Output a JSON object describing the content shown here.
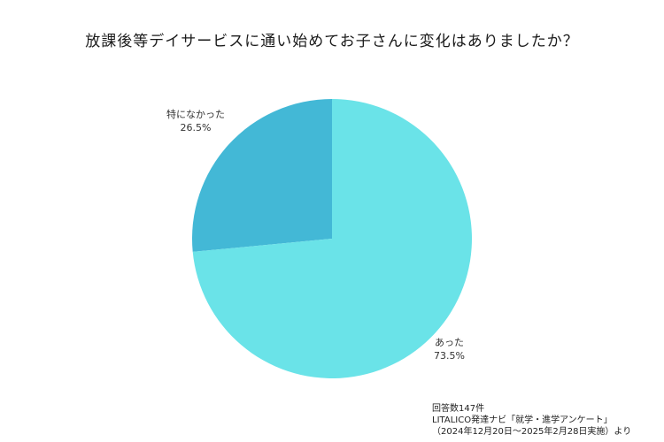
{
  "chart_data": {
    "type": "pie",
    "title": "放課後等デイサービスに通い始めてお子さんに変化はありましたか？",
    "slices": [
      {
        "label": "特になかった",
        "value": 26.5,
        "value_label": "26.5%",
        "color": "#43b8d6"
      },
      {
        "label": "あった",
        "value": 73.5,
        "value_label": "73.5%",
        "color": "#6ae3e8"
      }
    ],
    "start_angle_deg": 0,
    "direction": "counterclockwise-from-top"
  },
  "footer": {
    "responses": "回答数147件",
    "source": "LITALICO発達ナビ「就学・進学アンケート」",
    "period": "（2024年12月20日～2025年2月28日実施）より"
  }
}
